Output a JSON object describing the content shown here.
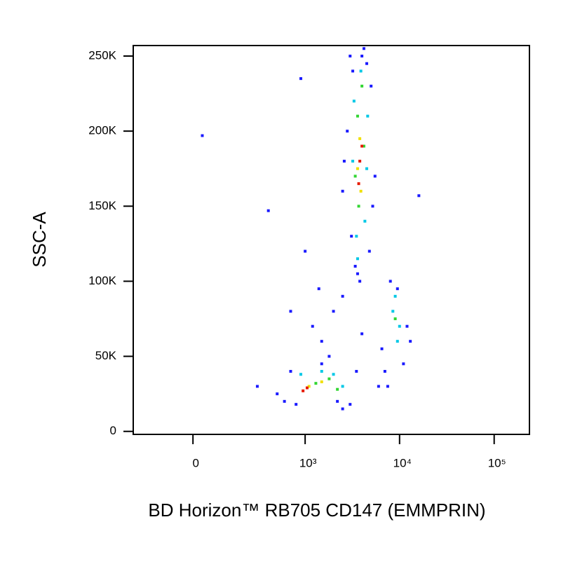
{
  "chart_data": {
    "type": "scatter",
    "x_label": "BD Horizon™ RB705 CD147 (EMMPRIN)",
    "y_label": "SSC-A",
    "xscale": "biexponential",
    "xlim": [
      -265,
      236000
    ],
    "xticks": [
      0,
      {
        "value": 1000,
        "label": "10³"
      },
      {
        "value": 10000,
        "label": "10⁴"
      },
      {
        "value": 100000,
        "label": "10⁵"
      }
    ],
    "ylim": [
      -2000,
      257000
    ],
    "yticks": [
      0,
      {
        "value": 50000,
        "label": "50K"
      },
      {
        "value": 100000,
        "label": "100K"
      },
      {
        "value": 150000,
        "label": "150K"
      },
      {
        "value": 200000,
        "label": "200K"
      },
      {
        "value": 250000,
        "label": "250K"
      }
    ],
    "series": [
      {
        "color": "#1a1aff",
        "x": [
          3000,
          3200,
          4500,
          5000,
          2800,
          3400,
          5200,
          4200,
          2600,
          3600,
          4800,
          3100,
          5500,
          2500,
          4000,
          3800,
          600,
          700,
          1500,
          2500,
          3000,
          3500,
          500,
          800,
          1800,
          2200,
          6500,
          7000,
          12000,
          11000,
          8000,
          9500,
          13000,
          7500,
          1500,
          2000,
          1200,
          2500,
          4000,
          6000,
          30,
          900,
          400,
          300,
          16000,
          700,
          1400,
          1000
        ],
        "values": [
          250000,
          240000,
          245000,
          230000,
          200000,
          110000,
          150000,
          255000,
          180000,
          105000,
          120000,
          130000,
          170000,
          160000,
          250000,
          100000,
          20000,
          40000,
          45000,
          15000,
          18000,
          40000,
          25000,
          18000,
          50000,
          20000,
          55000,
          40000,
          70000,
          45000,
          100000,
          95000,
          60000,
          30000,
          60000,
          80000,
          70000,
          90000,
          65000,
          30000,
          197000,
          235000,
          147000,
          30000,
          157000,
          80000,
          95000,
          120000
        ]
      },
      {
        "color": "#00c8e6",
        "x": [
          3300,
          4600,
          3500,
          4300,
          3900,
          3200,
          4500,
          3600,
          1500,
          2000,
          2500,
          900,
          8500,
          9500,
          9000,
          10000
        ],
        "values": [
          220000,
          210000,
          130000,
          140000,
          240000,
          180000,
          175000,
          115000,
          40000,
          38000,
          30000,
          38000,
          80000,
          60000,
          90000,
          70000
        ]
      },
      {
        "color": "#33d633",
        "x": [
          3600,
          4200,
          3700,
          4000,
          3400,
          1300,
          1800,
          2200,
          9000
        ],
        "values": [
          210000,
          190000,
          150000,
          230000,
          170000,
          32000,
          35000,
          28000,
          75000
        ]
      },
      {
        "color": "#f0e000",
        "x": [
          3800,
          3900,
          3600,
          1100,
          1500
        ],
        "values": [
          195000,
          160000,
          175000,
          30000,
          33000
        ]
      },
      {
        "color": "#e61a00",
        "x": [
          3800,
          3700,
          4000,
          950,
          1050
        ],
        "values": [
          180000,
          165000,
          190000,
          27000,
          29000
        ]
      }
    ]
  }
}
